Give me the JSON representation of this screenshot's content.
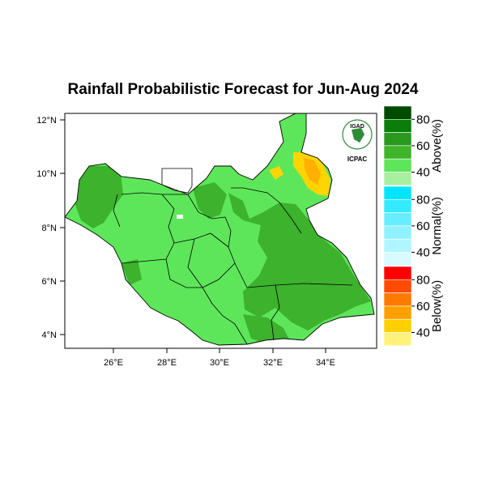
{
  "title": "Rainfall Probabilistic Forecast for Jun-Aug 2024",
  "map": {
    "lon_ticks": [
      "26°E",
      "28°E",
      "30°E",
      "32°E",
      "34°E"
    ],
    "lat_ticks": [
      "12°N",
      "10°N",
      "8°N",
      "6°N",
      "4°N"
    ],
    "colors": {
      "above_40": "#5ee65a",
      "above_50": "#3cb22d",
      "below_40": "#ffd400",
      "below_50": "#ffb000",
      "no_data": "#ffffff",
      "border": "#000000"
    }
  },
  "logo": {
    "top_text": "IGAD",
    "bottom_text": "ICPAC",
    "color": "#2e8b3a"
  },
  "legend": {
    "groups": [
      {
        "label": "Above(%)",
        "ticks": [
          "80",
          "60",
          "40"
        ],
        "colors": [
          "#004b00",
          "#0a7d0a",
          "#2a9a1f",
          "#3fb52a",
          "#5ee65a",
          "#a8f0a0"
        ]
      },
      {
        "label": "Normal(%)",
        "ticks": [
          "80",
          "60",
          "40"
        ],
        "colors": [
          "#00e5ff",
          "#33eaff",
          "#66eeff",
          "#8ff2ff",
          "#b0f6ff",
          "#d8fbff"
        ]
      },
      {
        "label": "Below(%)",
        "ticks": [
          "80",
          "60",
          "40"
        ],
        "colors": [
          "#ff0000",
          "#ff4a00",
          "#ff7a00",
          "#ffa000",
          "#ffd000",
          "#fff27a"
        ]
      }
    ]
  }
}
